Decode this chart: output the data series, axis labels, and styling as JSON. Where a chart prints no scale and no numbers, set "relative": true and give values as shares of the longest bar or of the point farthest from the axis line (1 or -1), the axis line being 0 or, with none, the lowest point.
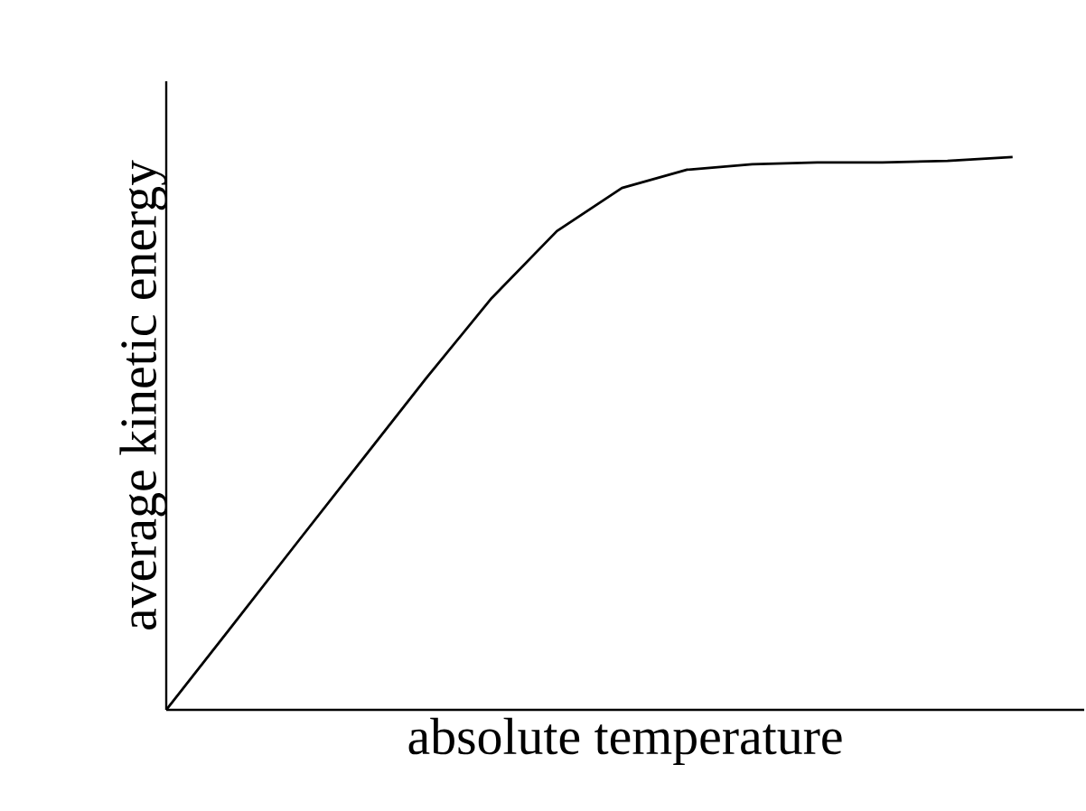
{
  "chart_data": {
    "type": "line",
    "relative": true,
    "xlabel": "absolute temperature",
    "ylabel": "average kinetic energy",
    "categories": [
      null,
      null,
      null,
      null,
      null,
      null,
      null,
      null,
      null,
      null,
      null,
      null,
      null,
      null
    ],
    "series": [
      {
        "color": "#000000",
        "values": [
          0,
          0.15,
          0.301,
          0.451,
          0.601,
          0.745,
          0.866,
          0.944,
          0.977,
          0.987,
          0.99,
          0.99,
          0.993,
          1
        ]
      }
    ],
    "marker": "none",
    "line_style": "solid"
  }
}
